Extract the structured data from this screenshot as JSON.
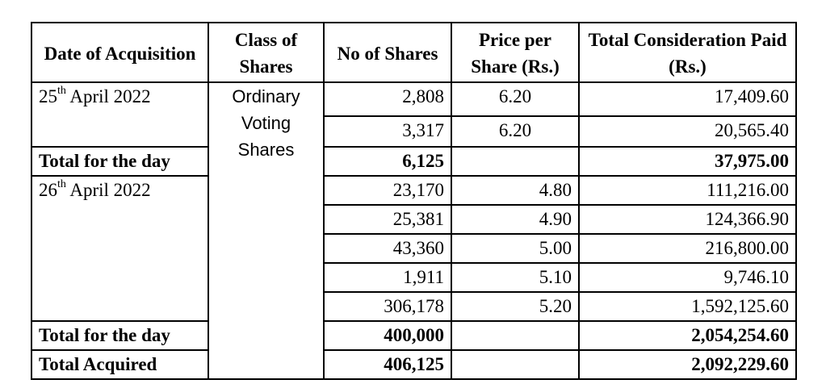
{
  "headers": {
    "date": "Date of Acquisition",
    "class": "Class of Shares",
    "no": "No of Shares",
    "price": "Price per Share (Rs.)",
    "total": "Total Consideration Paid (Rs.)"
  },
  "class_of_shares": [
    "Ordinary",
    "Voting",
    "Shares"
  ],
  "day1": {
    "date_day": "25",
    "date_suffix": "th",
    "date_rest": " April 2022",
    "rows": [
      {
        "shares": "2,808",
        "price": "6.20",
        "total": "17,409.60"
      },
      {
        "shares": "3,317",
        "price": "6.20",
        "total": "20,565.40"
      }
    ],
    "total_label": "Total for the day",
    "total_shares": "6,125",
    "total_amount": "37,975.00"
  },
  "day2": {
    "date_day": "26",
    "date_suffix": "th",
    "date_rest": " April 2022",
    "rows": [
      {
        "shares": "23,170",
        "price": "4.80",
        "total": "111,216.00"
      },
      {
        "shares": "25,381",
        "price": "4.90",
        "total": "124,366.90"
      },
      {
        "shares": "43,360",
        "price": "5.00",
        "total": "216,800.00"
      },
      {
        "shares": "1,911",
        "price": "5.10",
        "total": "9,746.10"
      },
      {
        "shares": "306,178",
        "price": "5.20",
        "total": "1,592,125.60"
      }
    ],
    "total_label": "Total for the day",
    "total_shares": "400,000",
    "total_amount": "2,054,254.60"
  },
  "grand_total": {
    "label": "Total Acquired",
    "shares": "406,125",
    "amount": "2,092,229.60"
  }
}
